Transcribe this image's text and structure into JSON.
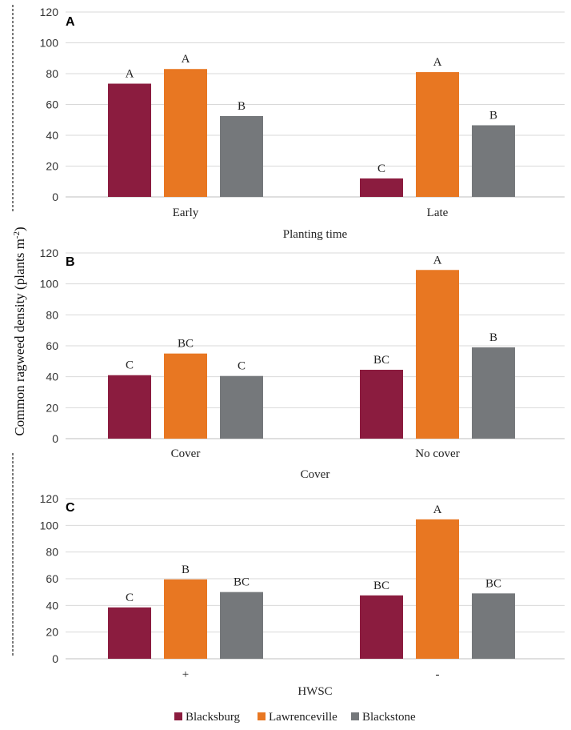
{
  "figure": {
    "ylabel_text": "Common ragweed density (plants m",
    "ylabel_sup": "-2",
    "ylabel_close": ")"
  },
  "colors": {
    "Blacksburg": "#8B1C3F",
    "Lawrenceville": "#E87722",
    "Blackstone": "#75787B"
  },
  "legend": [
    "Blacksburg",
    "Lawrenceville",
    "Blackstone"
  ],
  "chart_data": [
    {
      "type": "bar",
      "panel": "A",
      "xlabel": "Planting time",
      "ylabel": "Common ragweed density (plants m-2)",
      "ylim": [
        0,
        120
      ],
      "yticks": [
        0,
        20,
        40,
        60,
        80,
        100,
        120
      ],
      "grid": true,
      "categories": [
        "Early",
        "Late"
      ],
      "series": [
        {
          "name": "Blacksburg",
          "values": [
            73.5,
            12
          ],
          "labels": [
            "A",
            "C"
          ]
        },
        {
          "name": "Lawrenceville",
          "values": [
            83,
            81
          ],
          "labels": [
            "A",
            "A"
          ]
        },
        {
          "name": "Blackstone",
          "values": [
            52.5,
            46.5
          ],
          "labels": [
            "B",
            "B"
          ]
        }
      ]
    },
    {
      "type": "bar",
      "panel": "B",
      "xlabel": "Cover",
      "ylabel": "Common ragweed density (plants m-2)",
      "ylim": [
        0,
        120
      ],
      "yticks": [
        0,
        20,
        40,
        60,
        80,
        100,
        120
      ],
      "grid": true,
      "categories": [
        "Cover",
        "No cover"
      ],
      "series": [
        {
          "name": "Blacksburg",
          "values": [
            41,
            44.5
          ],
          "labels": [
            "C",
            "BC"
          ]
        },
        {
          "name": "Lawrenceville",
          "values": [
            55,
            109
          ],
          "labels": [
            "BC",
            "A"
          ]
        },
        {
          "name": "Blackstone",
          "values": [
            40.5,
            59
          ],
          "labels": [
            "C",
            "B"
          ]
        }
      ]
    },
    {
      "type": "bar",
      "panel": "C",
      "xlabel": "HWSC",
      "ylabel": "Common ragweed density (plants m-2)",
      "ylim": [
        0,
        120
      ],
      "yticks": [
        0,
        20,
        40,
        60,
        80,
        100,
        120
      ],
      "grid": true,
      "categories": [
        "+",
        "-"
      ],
      "series": [
        {
          "name": "Blacksburg",
          "values": [
            38.5,
            47.5
          ],
          "labels": [
            "C",
            "BC"
          ]
        },
        {
          "name": "Lawrenceville",
          "values": [
            59.5,
            104.5
          ],
          "labels": [
            "B",
            "A"
          ]
        },
        {
          "name": "Blackstone",
          "values": [
            50,
            49
          ],
          "labels": [
            "BC",
            "BC"
          ]
        }
      ]
    }
  ]
}
